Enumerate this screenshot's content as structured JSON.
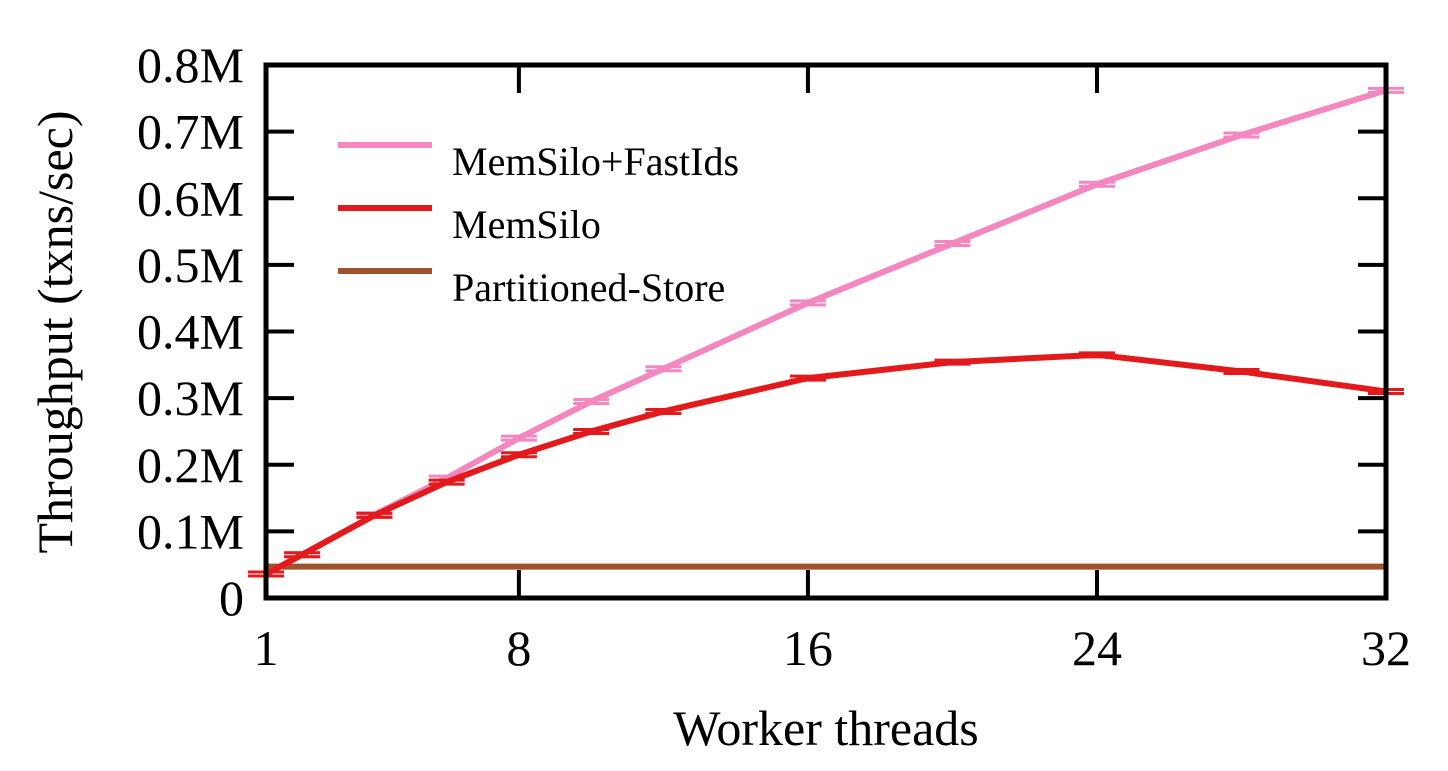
{
  "chart_data": {
    "type": "line",
    "title": "",
    "xlabel": "Worker threads",
    "ylabel": "Throughput (txns/sec)",
    "xlim": [
      1,
      32
    ],
    "ylim": [
      0,
      0.8
    ],
    "x_ticks": [
      1,
      8,
      16,
      24,
      32
    ],
    "x_tick_labels": [
      "1",
      "8",
      "16",
      "24",
      "32"
    ],
    "y_ticks": [
      0,
      0.1,
      0.2,
      0.3,
      0.4,
      0.5,
      0.6,
      0.7,
      0.8
    ],
    "y_tick_labels": [
      "0",
      "0.1M",
      "0.2M",
      "0.3M",
      "0.4M",
      "0.5M",
      "0.6M",
      "0.7M",
      "0.8M"
    ],
    "y_unit": "millions of txns/sec",
    "grid": false,
    "legend_position": "top-left",
    "error_bars": true,
    "series": [
      {
        "name": "MemSilo+FastIds",
        "color": "#f486c0",
        "x": [
          1,
          2,
          4,
          6,
          8,
          10,
          12,
          16,
          20,
          24,
          28,
          32
        ],
        "y": [
          0.036,
          0.065,
          0.125,
          0.18,
          0.24,
          0.295,
          0.344,
          0.443,
          0.532,
          0.621,
          0.695,
          0.762
        ]
      },
      {
        "name": "MemSilo",
        "color": "#e31a1c",
        "x": [
          1,
          2,
          4,
          6,
          8,
          10,
          12,
          16,
          20,
          24,
          28,
          32
        ],
        "y": [
          0.036,
          0.065,
          0.124,
          0.174,
          0.215,
          0.25,
          0.28,
          0.33,
          0.354,
          0.365,
          0.34,
          0.31
        ]
      },
      {
        "name": "Partitioned-Store",
        "color": "#a0522d",
        "x": [
          1,
          32
        ],
        "y": [
          0.047,
          0.047
        ]
      }
    ]
  }
}
